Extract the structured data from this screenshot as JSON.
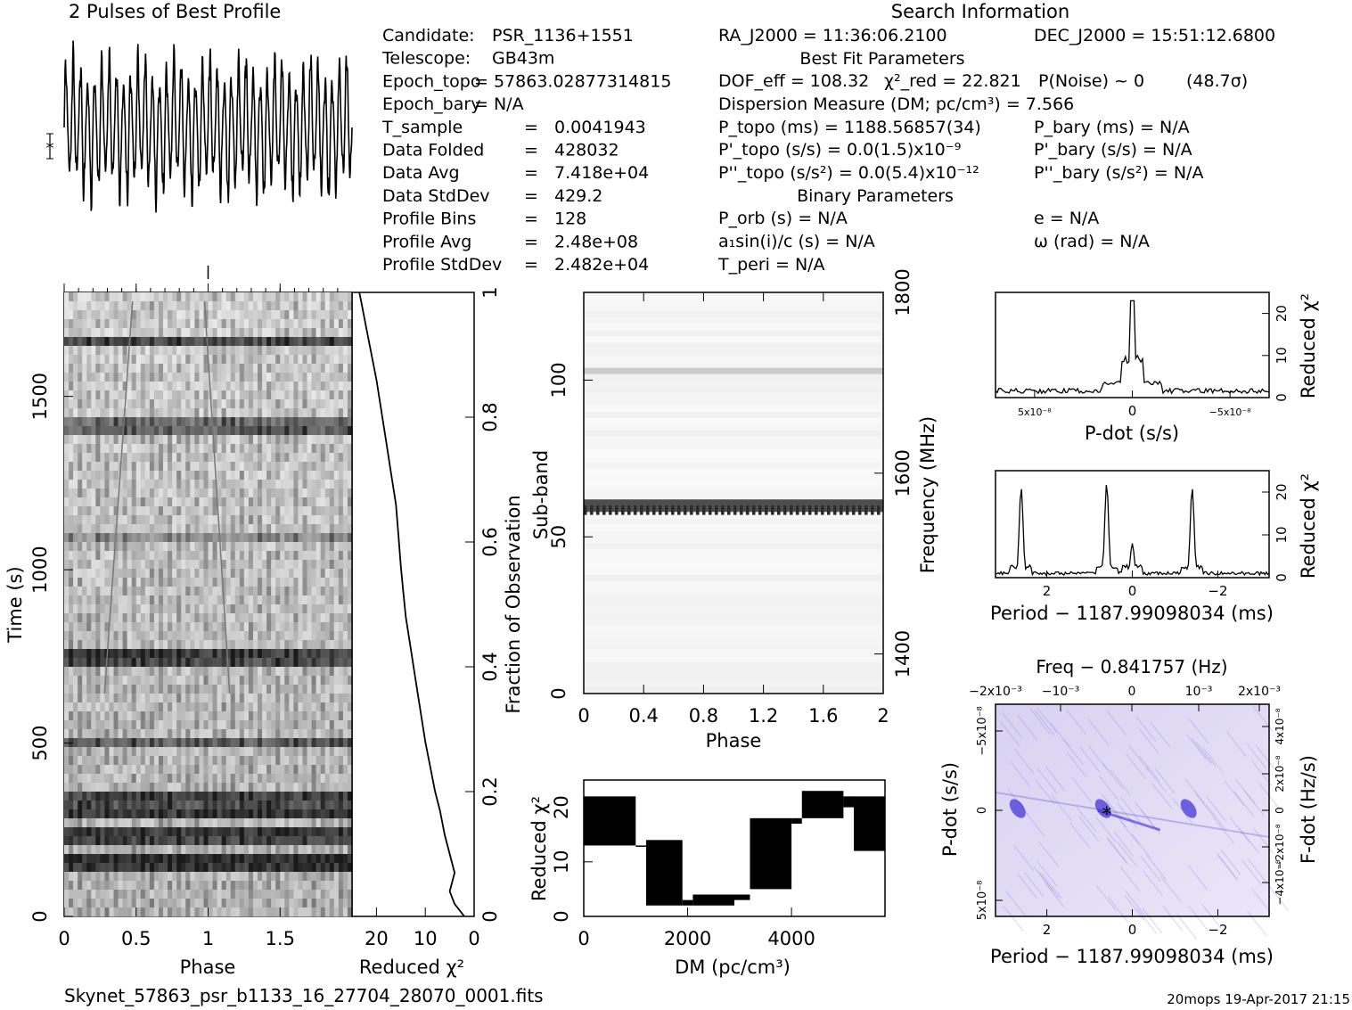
{
  "titles": {
    "profile": "2 Pulses of Best Profile",
    "search": "Search Information",
    "best_fit": "Best Fit Parameters",
    "binary": "Binary Parameters"
  },
  "info_left": [
    [
      "Candidate:",
      "PSR_1136+1551"
    ],
    [
      "Telescope:",
      "GB43m"
    ],
    [
      "Epoch_topo",
      "= 57863.02877314815"
    ],
    [
      "Epoch_bary",
      "= N/A"
    ],
    [
      "T_sample",
      "=",
      "0.0041943"
    ],
    [
      "Data Folded",
      "=",
      "428032"
    ],
    [
      "Data Avg",
      "=",
      "7.418e+04"
    ],
    [
      "Data StdDev",
      "=",
      "429.2"
    ],
    [
      "Profile Bins",
      "=",
      "128"
    ],
    [
      "Profile Avg",
      "=",
      "2.48e+08"
    ],
    [
      "Profile StdDev",
      "=",
      "2.482e+04"
    ]
  ],
  "info_mid": {
    "ra": "RA_J2000 = 11:36:06.2100",
    "dec": "DEC_J2000 = 15:51:12.6800",
    "dof": "DOF_eff = 108.32",
    "chi2": "χ²_red = 22.821",
    "pnoise": "P(Noise) ~ 0",
    "sigma": "(48.7σ)",
    "dm": "Dispersion Measure (DM; pc/cm³) = 7.566",
    "ptopo": "P_topo (ms) =  1188.56857(34)",
    "pdtopo": "P'_topo (s/s) = 0.0(1.5)x10⁻⁹",
    "pddtopo": "P''_topo (s/s²) = 0.0(5.4)x10⁻¹²",
    "pbary": "P_bary (ms) = N/A",
    "pdbary": "P'_bary (s/s) = N/A",
    "pddbary": "P''_bary (s/s²) = N/A",
    "porb": "P_orb (s) = N/A",
    "a1": "a₁sin(i)/c (s) = N/A",
    "tperi": "T_peri = N/A",
    "ecc": "e = N/A",
    "omega": "ω (rad) = N/A"
  },
  "footer": {
    "filename": "Skynet_57863_psr_b1133_16_27704_28070_0001.fits",
    "stamp": "20mops 19-Apr-2017 21:15"
  },
  "colors": {
    "ink": "#000000",
    "ppdot": "#3a2bd6"
  },
  "chart_data": [
    {
      "id": "profile",
      "type": "line",
      "title": "2 Pulses of Best Profile",
      "description_only": false,
      "xlim": [
        0,
        2
      ],
      "cycles": 40
    },
    {
      "id": "time_phase",
      "type": "heatmap",
      "xlabel": "Phase",
      "ylabel": "Time (s)",
      "xlim": [
        0,
        2
      ],
      "ylim": [
        0,
        1800
      ],
      "xticks": [
        "0",
        "0.5",
        "1",
        "1.5"
      ],
      "yticks": [
        "0",
        "500",
        "1000",
        "1500"
      ]
    },
    {
      "id": "time_chi2",
      "type": "line",
      "xlabel": "Reduced χ²",
      "ylabel": "Fraction of Observation",
      "xlim": [
        25,
        0
      ],
      "ylim": [
        0,
        1
      ],
      "xticks": [
        "20",
        "10",
        "0"
      ],
      "yticks": [
        "0",
        "0.2",
        "0.4",
        "0.6",
        "0.8",
        "1"
      ],
      "points": [
        [
          2,
          0.0
        ],
        [
          4,
          0.02
        ],
        [
          5,
          0.04
        ],
        [
          4,
          0.07
        ],
        [
          5,
          0.1
        ],
        [
          6,
          0.13
        ],
        [
          7,
          0.17
        ],
        [
          8,
          0.2
        ],
        [
          9,
          0.24
        ],
        [
          10,
          0.28
        ],
        [
          11,
          0.33
        ],
        [
          12,
          0.38
        ],
        [
          13,
          0.43
        ],
        [
          14,
          0.48
        ],
        [
          14.5,
          0.52
        ],
        [
          15,
          0.56
        ],
        [
          15.5,
          0.61
        ],
        [
          16,
          0.66
        ],
        [
          17,
          0.71
        ],
        [
          18,
          0.76
        ],
        [
          19,
          0.81
        ],
        [
          20,
          0.86
        ],
        [
          21,
          0.9
        ],
        [
          22,
          0.94
        ],
        [
          23,
          0.98
        ],
        [
          23.5,
          1.0
        ]
      ]
    },
    {
      "id": "subband_phase",
      "type": "heatmap",
      "xlabel": "Phase",
      "ylabel": "Sub-band",
      "y2label": "Frequency (MHz)",
      "xlim": [
        0,
        2
      ],
      "ylim": [
        0,
        128
      ],
      "xticks": [
        "0",
        "0.4",
        "0.8",
        "1.2",
        "1.6",
        "2"
      ],
      "yticks": [
        "0",
        "50",
        "100"
      ],
      "y2ticks": [
        "1400",
        "1600",
        "1800"
      ],
      "rows": [
        {
          "subband": 58,
          "level": 0.85
        },
        {
          "subband": 59,
          "level": 0.7
        },
        {
          "subband": 102,
          "level": 0.2
        }
      ]
    },
    {
      "id": "dm_chi2",
      "type": "area",
      "xlabel": "DM (pc/cm³)",
      "ylabel": "Reduced χ²",
      "xlim": [
        0,
        5800
      ],
      "ylim": [
        0,
        25
      ],
      "xticks": [
        "0",
        "2000",
        "4000"
      ],
      "yticks": [
        "0",
        "10",
        "20"
      ],
      "bands": [
        {
          "x": [
            0,
            1000
          ],
          "lo": 13,
          "hi": 22
        },
        {
          "x": [
            1000,
            1200
          ],
          "lo": 13,
          "hi": 13
        },
        {
          "x": [
            1200,
            1900
          ],
          "lo": 2,
          "hi": 14
        },
        {
          "x": [
            1900,
            2100
          ],
          "lo": 2,
          "hi": 3
        },
        {
          "x": [
            2100,
            2900
          ],
          "lo": 2,
          "hi": 4
        },
        {
          "x": [
            2900,
            3200
          ],
          "lo": 3,
          "hi": 4
        },
        {
          "x": [
            3200,
            4000
          ],
          "lo": 5,
          "hi": 18
        },
        {
          "x": [
            4000,
            4200
          ],
          "lo": 17,
          "hi": 18
        },
        {
          "x": [
            4200,
            5000
          ],
          "lo": 18,
          "hi": 23
        },
        {
          "x": [
            5000,
            5200
          ],
          "lo": 20,
          "hi": 22
        },
        {
          "x": [
            5200,
            5800
          ],
          "lo": 12,
          "hi": 22
        }
      ]
    },
    {
      "id": "pdot_chi2",
      "type": "line",
      "xlabel": "P-dot (s/s)",
      "ylabel": "Reduced χ²",
      "xlim": [
        7e-09,
        -7e-09
      ],
      "ylim": [
        0,
        25
      ],
      "xticks": [
        "5x10⁻⁸",
        "0",
        "−5x10⁻⁸"
      ],
      "yticks": [
        "0",
        "10",
        "20"
      ],
      "peak": {
        "x": 0,
        "y": 23
      }
    },
    {
      "id": "period_chi2",
      "type": "line",
      "xlabel": "Period − 1187.99098034 (ms)",
      "ylabel": "Reduced χ²",
      "xlim": [
        3.2,
        -3.2
      ],
      "ylim": [
        0,
        25
      ],
      "xticks": [
        "2",
        "0",
        "−2"
      ],
      "yticks": [
        "0",
        "10",
        "20"
      ],
      "peaks": [
        {
          "x": 2.6,
          "y": 21
        },
        {
          "x": 0.6,
          "y": 22
        },
        {
          "x": 0,
          "y": 8
        },
        {
          "x": -1.4,
          "y": 21
        }
      ]
    },
    {
      "id": "period_pdot",
      "type": "heatmap",
      "title": "Freq − 0.841757 (Hz)",
      "xlabel": "Period − 1187.99098034 (ms)",
      "ylabel": "P-dot (s/s)",
      "y2label": "F-dot (Hz/s)",
      "xlim": [
        3.2,
        -3.2
      ],
      "xticks": [
        "2",
        "0",
        "−2"
      ],
      "x2ticks": [
        "−2x10⁻³",
        "−10⁻³",
        "0",
        "10⁻³",
        "2x10⁻³"
      ],
      "yticks": [
        "5x10⁻⁸",
        "0",
        "−5x10⁻⁸"
      ],
      "y2ticks": [
        "−4x10⁻⁸",
        "−2x10⁻⁸",
        "0",
        "2x10⁻⁸",
        "4x10⁻⁸"
      ],
      "best": {
        "x": 0.6,
        "y": 0
      }
    }
  ]
}
